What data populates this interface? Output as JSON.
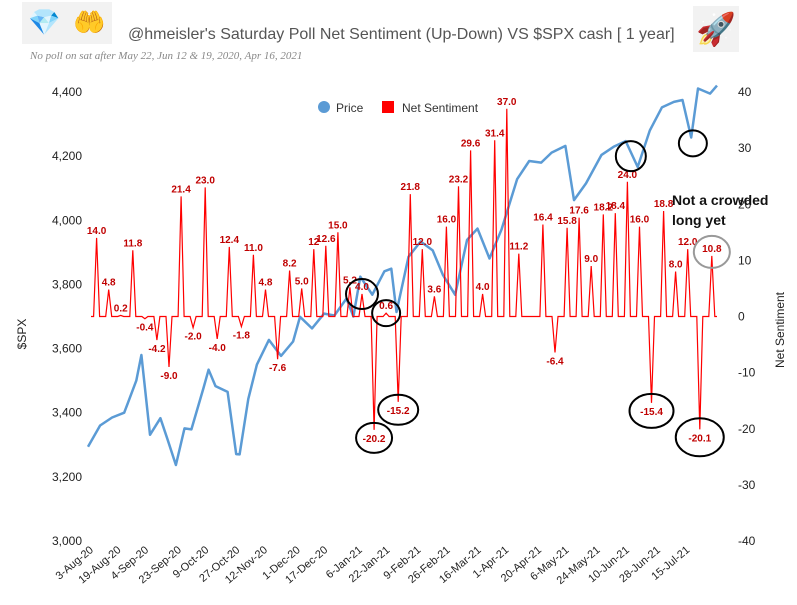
{
  "header": {
    "icons": [
      "diamond-icon",
      "palms-up-icon",
      "rocket-icon"
    ],
    "icon_glyphs": {
      "diamond": "💎",
      "palms": "🤲",
      "rocket": "🚀"
    },
    "title": "@hmeisler's Saturday Poll Net Sentiment (Up-Down) VS $SPX  cash [ 1 year]",
    "subtitle": "No poll on sat after May 22, Jun 12 & 19, 2020, Apr 16, 2021"
  },
  "chart_data": {
    "type": "line",
    "legend": {
      "position": "top-center",
      "entries": [
        "Price",
        "Net Sentiment"
      ]
    },
    "colors": {
      "price": "#5b9bd5",
      "sentiment": "#ff0000",
      "label": "#c00000"
    },
    "left_axis": {
      "label": "$SPX",
      "min": 3000,
      "max": 4400,
      "ticks": [
        "3,000",
        "3,200",
        "3,400",
        "3,600",
        "3,800",
        "4,000",
        "4,200",
        "4,400"
      ]
    },
    "right_axis": {
      "label": "Net Sentiment",
      "min": -40,
      "max": 40,
      "ticks": [
        "-40",
        "-30",
        "-20",
        "-10",
        "0",
        "10",
        "20",
        "30",
        "40"
      ]
    },
    "x_ticks": [
      "3-Aug-20",
      "19-Aug-20",
      "4-Sep-20",
      "23-Sep-20",
      "9-Oct-20",
      "27-Oct-20",
      "12-Nov-20",
      "1-Dec-20",
      "17-Dec-20",
      "6-Jan-21",
      "22-Jan-21",
      "9-Feb-21",
      "26-Feb-21",
      "16-Mar-21",
      "1-Apr-21",
      "20-Apr-21",
      "6-May-21",
      "24-May-21",
      "10-Jun-21",
      "28-Jun-21",
      "15-Jul-21"
    ],
    "grid": false,
    "sentiment_points": [
      {
        "date": "2020-08-08",
        "value": 14.0,
        "label": "14.0"
      },
      {
        "date": "2020-08-15",
        "value": 4.8,
        "label": "4.8"
      },
      {
        "date": "2020-08-22",
        "value": 0.2,
        "label": "0.2"
      },
      {
        "date": "2020-08-29",
        "value": 11.8,
        "label": "11.8"
      },
      {
        "date": "2020-09-05",
        "value": -0.4,
        "label": "-0.4"
      },
      {
        "date": "2020-09-12",
        "value": -4.2,
        "label": "-4.2"
      },
      {
        "date": "2020-09-19",
        "value": -9.0,
        "label": "-9.0"
      },
      {
        "date": "2020-09-26",
        "value": 21.4,
        "label": "21.4"
      },
      {
        "date": "2020-10-03",
        "value": -2.0,
        "label": "-2.0"
      },
      {
        "date": "2020-10-10",
        "value": 23.0,
        "label": "23.0"
      },
      {
        "date": "2020-10-17",
        "value": -4.0,
        "label": "-4.0"
      },
      {
        "date": "2020-10-24",
        "value": 12.4,
        "label": "12.4"
      },
      {
        "date": "2020-10-31",
        "value": -1.8,
        "label": "-1.8"
      },
      {
        "date": "2020-11-07",
        "value": 11.0,
        "label": "11.0"
      },
      {
        "date": "2020-11-14",
        "value": 4.8,
        "label": "4.8"
      },
      {
        "date": "2020-11-21",
        "value": -7.6,
        "label": "-7.6"
      },
      {
        "date": "2020-11-28",
        "value": 8.2,
        "label": "8.2"
      },
      {
        "date": "2020-12-05",
        "value": 5.0,
        "label": "5.0"
      },
      {
        "date": "2020-12-12",
        "value": 12.0,
        "label": "12"
      },
      {
        "date": "2020-12-19",
        "value": 12.6,
        "label": "12.6"
      },
      {
        "date": "2020-12-26",
        "value": 15.0,
        "label": "15.0"
      },
      {
        "date": "2021-01-02",
        "value": 5.2,
        "label": "5.2"
      },
      {
        "date": "2021-01-09",
        "value": 4.0,
        "label": "4.0"
      },
      {
        "date": "2021-01-16",
        "value": -20.2,
        "label": "-20.2"
      },
      {
        "date": "2021-01-23",
        "value": 0.6,
        "label": "0.6"
      },
      {
        "date": "2021-01-30",
        "value": -15.2,
        "label": "-15.2"
      },
      {
        "date": "2021-02-06",
        "value": 21.8,
        "label": "21.8"
      },
      {
        "date": "2021-02-13",
        "value": 12.0,
        "label": "12.0"
      },
      {
        "date": "2021-02-20",
        "value": 3.6,
        "label": "3.6"
      },
      {
        "date": "2021-02-27",
        "value": 16.0,
        "label": "16.0"
      },
      {
        "date": "2021-03-06",
        "value": 23.2,
        "label": "23.2"
      },
      {
        "date": "2021-03-13",
        "value": 29.6,
        "label": "29.6"
      },
      {
        "date": "2021-03-20",
        "value": 4.0,
        "label": "4.0"
      },
      {
        "date": "2021-03-27",
        "value": 31.4,
        "label": "31.4"
      },
      {
        "date": "2021-04-03",
        "value": 37.0,
        "label": "37.0"
      },
      {
        "date": "2021-04-10",
        "value": 11.2,
        "label": "11.2"
      },
      {
        "date": "2021-04-24",
        "value": 16.4,
        "label": "16.4"
      },
      {
        "date": "2021-05-01",
        "value": -6.4,
        "label": "-6.4"
      },
      {
        "date": "2021-05-08",
        "value": 15.8,
        "label": "15.8"
      },
      {
        "date": "2021-05-15",
        "value": 17.6,
        "label": "17.6"
      },
      {
        "date": "2021-05-22",
        "value": 9.0,
        "label": "9.0"
      },
      {
        "date": "2021-05-29",
        "value": 18.2,
        "label": "18.2"
      },
      {
        "date": "2021-06-05",
        "value": 18.4,
        "label": "18.4"
      },
      {
        "date": "2021-06-12",
        "value": 24.0,
        "label": "24.0"
      },
      {
        "date": "2021-06-19",
        "value": 16.0,
        "label": "16.0"
      },
      {
        "date": "2021-06-26",
        "value": -15.4,
        "label": "-15.4"
      },
      {
        "date": "2021-07-03",
        "value": 18.8,
        "label": "18.8"
      },
      {
        "date": "2021-07-10",
        "value": 8.0,
        "label": "8.0"
      },
      {
        "date": "2021-07-17",
        "value": 12.0,
        "label": "12.0"
      },
      {
        "date": "2021-07-24",
        "value": -20.1,
        "label": "-20.1"
      },
      {
        "date": "2021-07-31",
        "value": 10.8,
        "label": "10.8"
      }
    ],
    "price_points": [
      [
        "2020-08-03",
        3294
      ],
      [
        "2020-08-10",
        3360
      ],
      [
        "2020-08-17",
        3385
      ],
      [
        "2020-08-24",
        3400
      ],
      [
        "2020-08-31",
        3500
      ],
      [
        "2020-09-03",
        3580
      ],
      [
        "2020-09-08",
        3331
      ],
      [
        "2020-09-14",
        3383
      ],
      [
        "2020-09-18",
        3319
      ],
      [
        "2020-09-23",
        3237
      ],
      [
        "2020-09-28",
        3351
      ],
      [
        "2020-10-02",
        3348
      ],
      [
        "2020-10-09",
        3477
      ],
      [
        "2020-10-12",
        3534
      ],
      [
        "2020-10-16",
        3483
      ],
      [
        "2020-10-23",
        3465
      ],
      [
        "2020-10-28",
        3271
      ],
      [
        "2020-10-30",
        3270
      ],
      [
        "2020-11-04",
        3443
      ],
      [
        "2020-11-09",
        3550
      ],
      [
        "2020-11-16",
        3627
      ],
      [
        "2020-11-23",
        3577
      ],
      [
        "2020-11-30",
        3622
      ],
      [
        "2020-12-04",
        3699
      ],
      [
        "2020-12-11",
        3663
      ],
      [
        "2020-12-18",
        3709
      ],
      [
        "2020-12-24",
        3703
      ],
      [
        "2020-12-31",
        3756
      ],
      [
        "2021-01-04",
        3700
      ],
      [
        "2021-01-08",
        3824
      ],
      [
        "2021-01-15",
        3768
      ],
      [
        "2021-01-22",
        3841
      ],
      [
        "2021-01-26",
        3849
      ],
      [
        "2021-01-29",
        3714
      ],
      [
        "2021-02-05",
        3886
      ],
      [
        "2021-02-12",
        3934
      ],
      [
        "2021-02-19",
        3906
      ],
      [
        "2021-02-25",
        3829
      ],
      [
        "2021-03-04",
        3768
      ],
      [
        "2021-03-11",
        3939
      ],
      [
        "2021-03-17",
        3974
      ],
      [
        "2021-03-24",
        3881
      ],
      [
        "2021-03-31",
        3972
      ],
      [
        "2021-04-09",
        4128
      ],
      [
        "2021-04-16",
        4185
      ],
      [
        "2021-04-23",
        4180
      ],
      [
        "2021-04-29",
        4211
      ],
      [
        "2021-05-07",
        4232
      ],
      [
        "2021-05-12",
        4063
      ],
      [
        "2021-05-19",
        4115
      ],
      [
        "2021-05-28",
        4204
      ],
      [
        "2021-06-04",
        4229
      ],
      [
        "2021-06-11",
        4247
      ],
      [
        "2021-06-18",
        4166
      ],
      [
        "2021-06-25",
        4280
      ],
      [
        "2021-07-02",
        4352
      ],
      [
        "2021-07-09",
        4369
      ],
      [
        "2021-07-14",
        4375
      ],
      [
        "2021-07-19",
        4258
      ],
      [
        "2021-07-23",
        4411
      ],
      [
        "2021-07-30",
        4395
      ],
      [
        "2021-08-03",
        4420
      ]
    ],
    "annotations": [
      {
        "text": "Not a crowded",
        "text2": "long yet"
      }
    ]
  }
}
